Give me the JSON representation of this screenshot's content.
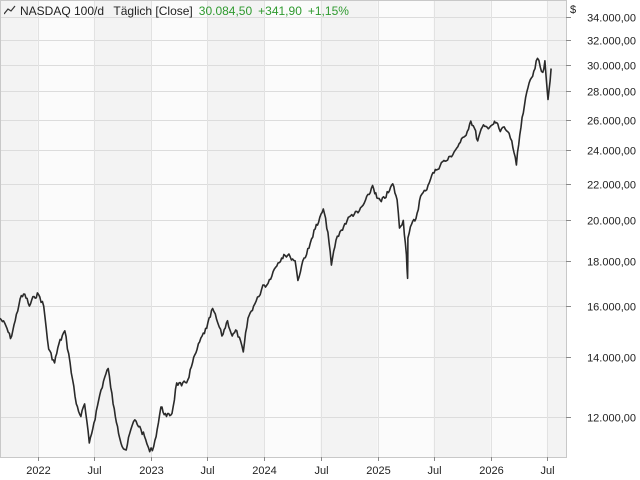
{
  "header": {
    "symbol": "NASDAQ 100/d",
    "mode": "Täglich [Close]",
    "last": "30.084,50",
    "change": "+341,90",
    "change_pct": "+1,15%",
    "currency": "$",
    "positive_color": "#2f9a2f"
  },
  "chart_data": {
    "type": "line",
    "scale": "log",
    "ylim": [
      10800,
      35500
    ],
    "y_ticks": [
      12000,
      14000,
      16000,
      18000,
      20000,
      22000,
      24000,
      26000,
      28000,
      30000,
      32000,
      34000
    ],
    "y_tick_labels": [
      "12.000,00",
      "14.000,00",
      "16.000,00",
      "18.000,00",
      "20.000,00",
      "22.000,00",
      "24.000,00",
      "26.000,00",
      "28.000,00",
      "30.000,00",
      "32.000,00",
      "34.000,00"
    ],
    "xlim": [
      "2021-09-01",
      "2026-09-01"
    ],
    "x_ticks": [
      "2022-01-01",
      "2022-07-01",
      "2023-01-01",
      "2023-07-01",
      "2024-01-01",
      "2024-07-01",
      "2025-01-01",
      "2025-07-01",
      "2026-01-01",
      "2026-07-01"
    ],
    "x_tick_labels": [
      "2022",
      "Jul",
      "2023",
      "Jul",
      "2024",
      "Jul",
      "2025",
      "Jul",
      "2026",
      "Jul"
    ],
    "grid": true,
    "line_color": "#2a2a2a",
    "series": [
      {
        "x": [
          "2021-09-01",
          "2021-09-20",
          "2021-10-05",
          "2021-10-20",
          "2021-11-05",
          "2021-11-20",
          "2021-12-05",
          "2021-12-20",
          "2022-01-03",
          "2022-01-20",
          "2022-02-05",
          "2022-02-24",
          "2022-03-10",
          "2022-03-29",
          "2022-04-15",
          "2022-05-05",
          "2022-05-20",
          "2022-06-01",
          "2022-06-16",
          "2022-07-01",
          "2022-07-20",
          "2022-08-05",
          "2022-08-16",
          "2022-09-01",
          "2022-09-15",
          "2022-09-30",
          "2022-10-13",
          "2022-10-28",
          "2022-11-10",
          "2022-11-30",
          "2022-12-15",
          "2022-12-28",
          "2023-01-10",
          "2023-01-25",
          "2023-02-02",
          "2023-02-20",
          "2023-03-10",
          "2023-03-25",
          "2023-04-10",
          "2023-04-30",
          "2023-05-15",
          "2023-05-30",
          "2023-06-15",
          "2023-06-30",
          "2023-07-19",
          "2023-08-05",
          "2023-08-18",
          "2023-09-05",
          "2023-09-20",
          "2023-10-05",
          "2023-10-26",
          "2023-11-10",
          "2023-11-28",
          "2023-12-15",
          "2023-12-28",
          "2024-01-10",
          "2024-01-30",
          "2024-02-15",
          "2024-03-05",
          "2024-03-25",
          "2024-04-10",
          "2024-04-19",
          "2024-05-05",
          "2024-05-25",
          "2024-06-10",
          "2024-06-25",
          "2024-07-10",
          "2024-07-25",
          "2024-08-05",
          "2024-08-20",
          "2024-09-06",
          "2024-09-25",
          "2024-10-10",
          "2024-10-30",
          "2024-11-15",
          "2024-12-05",
          "2024-12-16",
          "2024-12-30",
          "2025-01-13",
          "2025-02-05",
          "2025-02-19",
          "2025-03-05",
          "2025-03-13",
          "2025-03-25",
          "2025-04-04",
          "2025-04-08",
          "2025-04-09",
          "2025-04-21",
          "2025-05-05",
          "2025-05-20",
          "2025-06-05",
          "2025-06-25",
          "2025-07-10",
          "2025-07-30",
          "2025-08-15",
          "2025-09-05",
          "2025-09-25",
          "2025-10-10",
          "2025-10-29",
          "2025-11-10",
          "2025-11-20",
          "2025-12-05",
          "2025-12-20",
          "2026-01-10",
          "2026-01-20",
          "2026-02-01",
          "2026-02-10",
          "2026-02-25",
          "2026-03-10",
          "2026-03-25",
          "2026-04-05",
          "2026-04-20",
          "2026-05-05",
          "2026-05-20",
          "2026-06-01",
          "2026-06-10",
          "2026-06-18",
          "2026-06-25",
          "2026-07-05",
          "2026-07-15"
        ],
        "y": [
          15500,
          15200,
          14700,
          15400,
          16300,
          16500,
          16000,
          16400,
          16500,
          16000,
          14300,
          13800,
          14500,
          15000,
          13800,
          12400,
          12000,
          12400,
          11200,
          11800,
          12700,
          13300,
          13600,
          12400,
          11700,
          11100,
          11000,
          11600,
          11900,
          11600,
          11300,
          10950,
          11100,
          11800,
          12300,
          12000,
          12100,
          13100,
          13000,
          13200,
          13800,
          14300,
          14800,
          15100,
          15900,
          15300,
          14800,
          15400,
          14800,
          15000,
          14200,
          15500,
          16000,
          16400,
          16900,
          16900,
          17500,
          17900,
          18300,
          18200,
          18000,
          17100,
          18000,
          18600,
          19500,
          19900,
          20600,
          19400,
          17800,
          19000,
          19500,
          20000,
          20300,
          20400,
          20800,
          21400,
          21900,
          21200,
          21000,
          21500,
          22000,
          21100,
          19600,
          20000,
          18300,
          17200,
          19100,
          19800,
          20100,
          21300,
          21600,
          22500,
          22800,
          23300,
          23400,
          23900,
          24500,
          24900,
          25900,
          25400,
          24600,
          25500,
          25500,
          25700,
          25800,
          25200,
          25500,
          25200,
          24600,
          23100,
          25000,
          27000,
          28600,
          29500,
          30500,
          29800,
          29400,
          30300,
          27400,
          29700
        ]
      }
    ]
  }
}
